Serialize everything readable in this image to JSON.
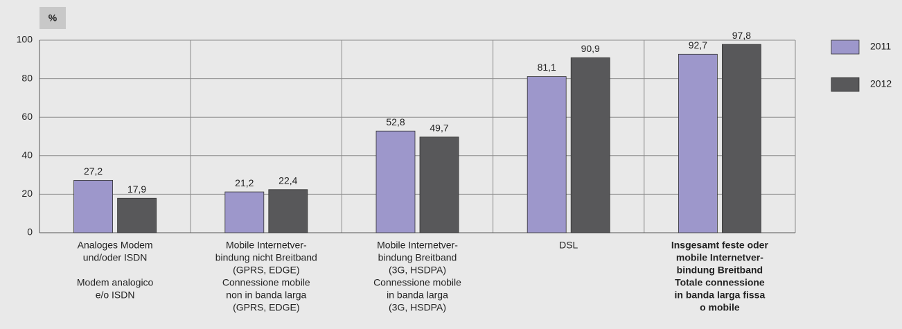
{
  "chart_data": {
    "type": "bar",
    "y_label": "%",
    "categories": [
      [
        [
          "Analoges Modem",
          "und/oder ISDN"
        ],
        [
          "Modem analogico",
          "e/o ISDN"
        ]
      ],
      [
        [
          "Mobile Internetver-",
          "bindung nicht Breitband",
          "(GPRS, EDGE)",
          "Connessione mobile",
          "non in banda larga",
          "(GPRS, EDGE)"
        ]
      ],
      [
        [
          "Mobile Internetver-",
          "bindung Breitband",
          "(3G, HSDPA)",
          "Connessione mobile",
          "in banda larga",
          "(3G, HSDPA)"
        ]
      ],
      [
        [
          "DSL"
        ]
      ],
      [
        [
          "Insgesamt feste oder",
          "mobile Internetver-",
          "bindung Breitband",
          "Totale connessione",
          "in banda larga fissa",
          "o mobile"
        ]
      ]
    ],
    "emphasized_category": 4,
    "series": [
      {
        "name": "2011",
        "color": "#9d97cb",
        "values": [
          27.2,
          21.2,
          52.8,
          81.1,
          92.7
        ],
        "value_labels": [
          "27,2",
          "21,2",
          "52,8",
          "81,1",
          "92,7"
        ]
      },
      {
        "name": "2012",
        "color": "#58585a",
        "values": [
          17.9,
          22.4,
          49.7,
          90.9,
          97.8
        ],
        "value_labels": [
          "17,9",
          "22,4",
          "49,7",
          "90,9",
          "97,8"
        ]
      }
    ],
    "ylim": [
      0,
      100
    ],
    "yticks": [
      0,
      20,
      40,
      60,
      80,
      100
    ],
    "grid": true,
    "legend": "right"
  }
}
